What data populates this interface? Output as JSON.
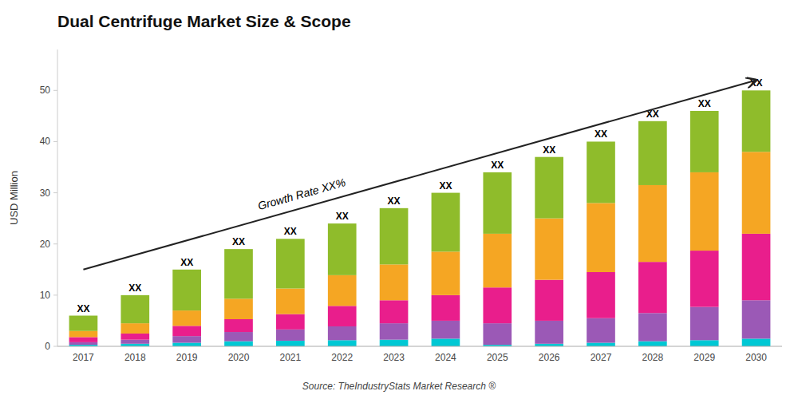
{
  "chart_data": {
    "type": "bar",
    "stacked": true,
    "grid": false,
    "title": "Dual Centrifuge Market Size & Scope",
    "ylabel": "USD Million",
    "source": "Source: TheIndustryStats Market Research ®",
    "categories": [
      "2017",
      "2018",
      "2019",
      "2020",
      "2021",
      "2022",
      "2023",
      "2024",
      "2025",
      "2026",
      "2027",
      "2028",
      "2029",
      "2030"
    ],
    "series": [
      {
        "color": "#00c8d4",
        "values": [
          0.3,
          0.5,
          0.7,
          1.0,
          1.1,
          1.2,
          1.3,
          1.5,
          0.3,
          0.5,
          0.7,
          1.0,
          1.2,
          1.5
        ]
      },
      {
        "color": "#9b59b6",
        "values": [
          0.5,
          0.8,
          1.3,
          1.8,
          2.2,
          2.7,
          3.2,
          3.5,
          4.2,
          4.5,
          4.8,
          5.5,
          6.5,
          7.5
        ]
      },
      {
        "color": "#e91e8c",
        "values": [
          1.0,
          1.2,
          2.0,
          2.5,
          3.0,
          4.0,
          4.5,
          5.0,
          7.0,
          8.0,
          9.0,
          10.0,
          11.0,
          13.0
        ]
      },
      {
        "color": "#f5a623",
        "values": [
          1.2,
          2.0,
          3.0,
          4.0,
          5.0,
          6.0,
          7.0,
          8.5,
          10.5,
          12.0,
          13.5,
          15.0,
          15.3,
          16.0
        ]
      },
      {
        "color": "#8fbc2b",
        "values": [
          3.0,
          5.5,
          8.0,
          9.7,
          9.7,
          10.1,
          11.0,
          11.5,
          12.0,
          12.0,
          12.0,
          12.5,
          12.0,
          12.0
        ]
      }
    ],
    "ylim": [
      0,
      58
    ],
    "yticks": [
      0,
      10,
      20,
      30,
      40,
      50
    ],
    "annotations": [
      {
        "text": "XX",
        "x": "2017",
        "y": 6
      },
      {
        "text": "XX",
        "x": "2018",
        "y": 10
      },
      {
        "text": "XX",
        "x": "2019",
        "y": 15
      },
      {
        "text": "XX",
        "x": "2020",
        "y": 19
      },
      {
        "text": "XX",
        "x": "2021",
        "y": 21
      },
      {
        "text": "XX",
        "x": "2022",
        "y": 24
      },
      {
        "text": "XX",
        "x": "2023",
        "y": 27
      },
      {
        "text": "XX",
        "x": "2024",
        "y": 30
      },
      {
        "text": "XX",
        "x": "2025",
        "y": 34
      },
      {
        "text": "XX",
        "x": "2026",
        "y": 37
      },
      {
        "text": "XX",
        "x": "2027",
        "y": 40
      },
      {
        "text": "XX",
        "x": "2028",
        "y": 44
      },
      {
        "text": "XX",
        "x": "2029",
        "y": 46
      },
      {
        "text": "XX",
        "x": "2030",
        "y": 50
      },
      {
        "text": "Growth Rate XX%",
        "x": "2017",
        "y": 15,
        "x_end": "2030",
        "y_end": 52
      }
    ]
  }
}
